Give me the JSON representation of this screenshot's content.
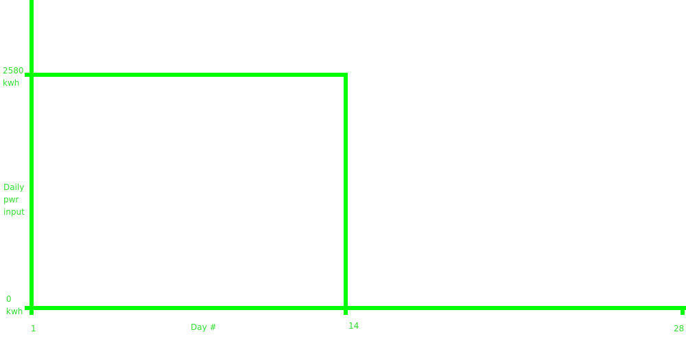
{
  "colors": {
    "line": "#00ff00",
    "text": "#33dd33",
    "background": "#ffffff"
  },
  "chart_data": {
    "type": "line",
    "title": "",
    "xlabel": "Day #",
    "ylabel": "Daily pwr input",
    "xlim": [
      1,
      28
    ],
    "ylim": [
      0,
      2580
    ],
    "x_ticks": [
      1,
      14,
      28
    ],
    "y_ticks": [
      0,
      2580
    ],
    "y_unit": "kwh",
    "series": [
      {
        "name": "Daily pwr input",
        "points": [
          {
            "x": 1,
            "y": 2580
          },
          {
            "x": 14,
            "y": 2580
          },
          {
            "x": 14,
            "y": 0
          },
          {
            "x": 28,
            "y": 0
          }
        ]
      }
    ],
    "labels": {
      "ylabel_lines": [
        "Daily",
        "pwr",
        "input"
      ],
      "y_top_value": "2580",
      "y_top_unit": "kwh",
      "y_bottom_value": "0",
      "y_bottom_unit": "kwh",
      "x_tick_1": "1",
      "x_tick_14": "14",
      "x_tick_28": "28"
    }
  }
}
